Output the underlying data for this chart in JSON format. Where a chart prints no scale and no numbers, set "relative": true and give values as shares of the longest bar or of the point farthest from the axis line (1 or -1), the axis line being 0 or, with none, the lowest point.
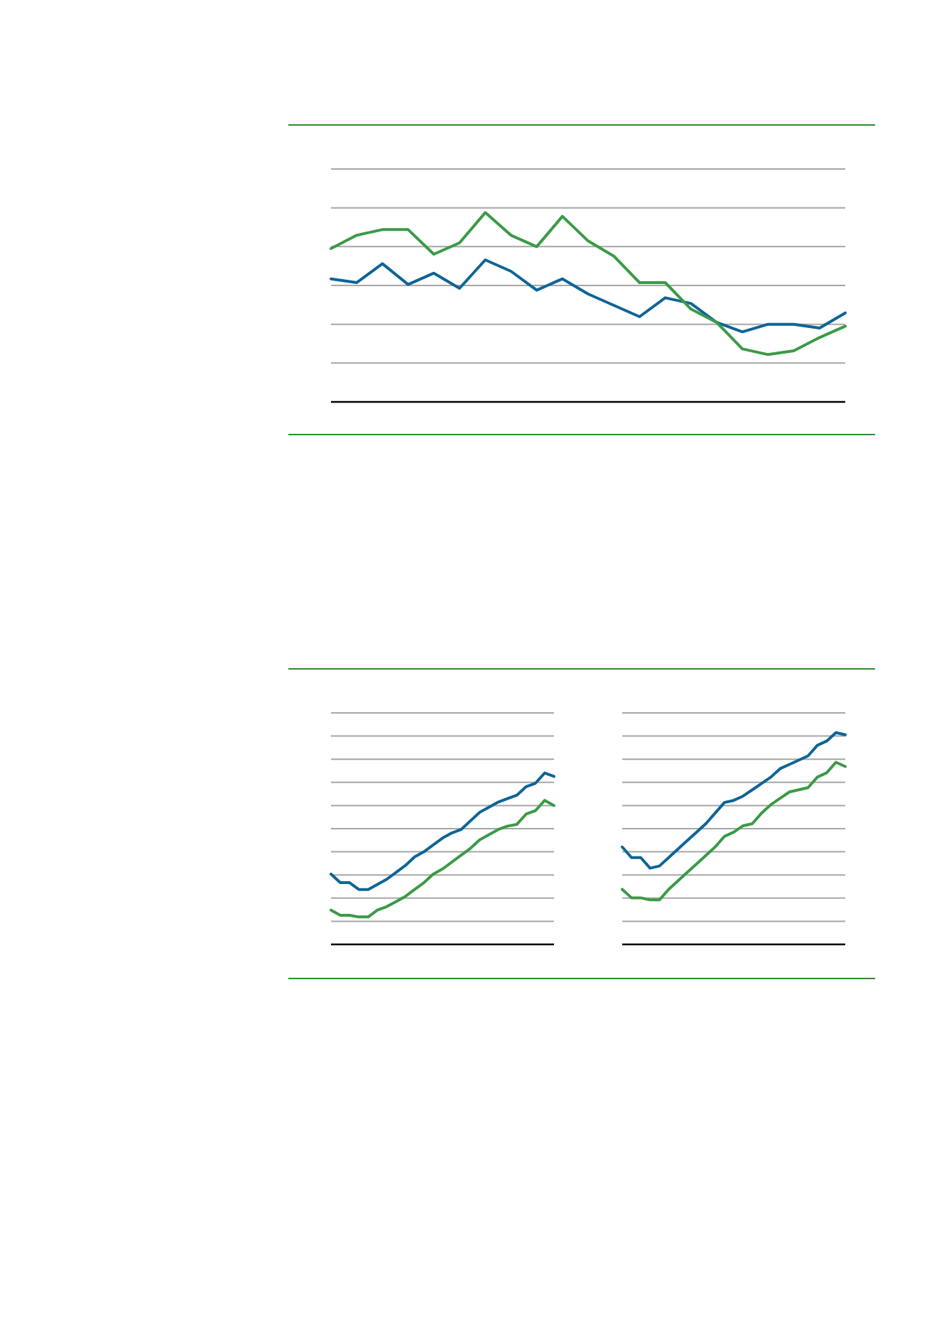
{
  "chart_data": [
    {
      "type": "line",
      "relative": true,
      "grid": "y",
      "categories": [
        null,
        null,
        null,
        null,
        null,
        null,
        null,
        null,
        null,
        null,
        null,
        null,
        null,
        null,
        null,
        null,
        null,
        null,
        null,
        null,
        null
      ],
      "series": [
        {
          "color": "#0e6496",
          "values": [
            0.65,
            0.63,
            0.73,
            0.62,
            0.68,
            0.6,
            0.75,
            0.69,
            0.59,
            0.65,
            0.57,
            0.51,
            0.45,
            0.55,
            0.52,
            0.42,
            0.37,
            0.41,
            0.41,
            0.39,
            0.47
          ]
        },
        {
          "color": "#3a9a47",
          "values": [
            0.81,
            0.88,
            0.91,
            0.91,
            0.78,
            0.84,
            1,
            0.88,
            0.82,
            0.98,
            0.85,
            0.77,
            0.63,
            0.63,
            0.49,
            0.42,
            0.28,
            0.25,
            0.27,
            0.34,
            0.4
          ]
        }
      ]
    },
    {
      "type": "line",
      "relative": true,
      "grid": "y",
      "categories": [
        null,
        null,
        null,
        null,
        null,
        null,
        null,
        null,
        null,
        null,
        null,
        null,
        null,
        null,
        null,
        null,
        null,
        null,
        null,
        null,
        null,
        null,
        null,
        null,
        null
      ],
      "series": [
        {
          "color": "#0e6496",
          "values": [
            0.41,
            0.36,
            0.36,
            0.32,
            0.32,
            0.35,
            0.38,
            0.42,
            0.46,
            0.51,
            0.54,
            0.58,
            0.62,
            0.65,
            0.67,
            0.72,
            0.77,
            0.8,
            0.83,
            0.85,
            0.87,
            0.92,
            0.94,
            1,
            0.98
          ]
        },
        {
          "color": "#3a9a47",
          "values": [
            0.2,
            0.17,
            0.17,
            0.16,
            0.16,
            0.2,
            0.22,
            0.25,
            0.28,
            0.32,
            0.36,
            0.41,
            0.44,
            0.48,
            0.52,
            0.56,
            0.61,
            0.64,
            0.67,
            0.69,
            0.7,
            0.76,
            0.78,
            0.84,
            0.81
          ]
        }
      ]
    },
    {
      "type": "line",
      "relative": true,
      "grid": "y",
      "categories": [
        null,
        null,
        null,
        null,
        null,
        null,
        null,
        null,
        null,
        null,
        null,
        null,
        null,
        null,
        null,
        null,
        null,
        null,
        null,
        null,
        null,
        null,
        null,
        null,
        null
      ],
      "series": [
        {
          "color": "#0e6496",
          "values": [
            0.46,
            0.41,
            0.41,
            0.36,
            0.37,
            0.41,
            0.45,
            0.49,
            0.53,
            0.57,
            0.62,
            0.67,
            0.68,
            0.7,
            0.73,
            0.76,
            0.79,
            0.83,
            0.85,
            0.87,
            0.89,
            0.94,
            0.96,
            1,
            0.99
          ]
        },
        {
          "color": "#3a9a47",
          "values": [
            0.26,
            0.22,
            0.22,
            0.21,
            0.21,
            0.26,
            0.3,
            0.34,
            0.38,
            0.42,
            0.46,
            0.51,
            0.53,
            0.56,
            0.57,
            0.62,
            0.66,
            0.69,
            0.72,
            0.73,
            0.74,
            0.79,
            0.81,
            0.86,
            0.84
          ]
        }
      ]
    }
  ]
}
